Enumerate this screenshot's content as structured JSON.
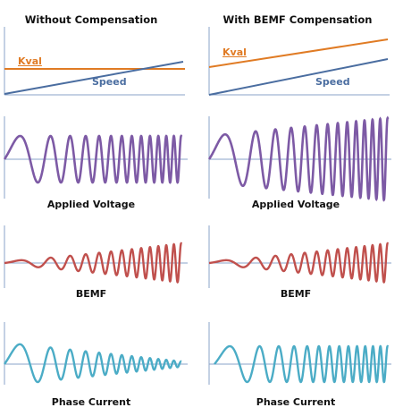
{
  "columns": [
    {
      "title": "Without Compensation"
    },
    {
      "title": "With BEMF Compensation"
    }
  ],
  "labels": {
    "kval": "Kval",
    "speed": "Speed"
  },
  "captions": {
    "applied_voltage": "Applied Voltage",
    "bemf": "BEMF",
    "phase_current": "Phase Current"
  },
  "colors": {
    "axis": "#8aa3c8",
    "kval": "#e07b24",
    "speed": "#4a6da0",
    "applied_voltage": "#7d5aa5",
    "bemf": "#c0504d",
    "phase_current": "#4bacc6"
  }
}
